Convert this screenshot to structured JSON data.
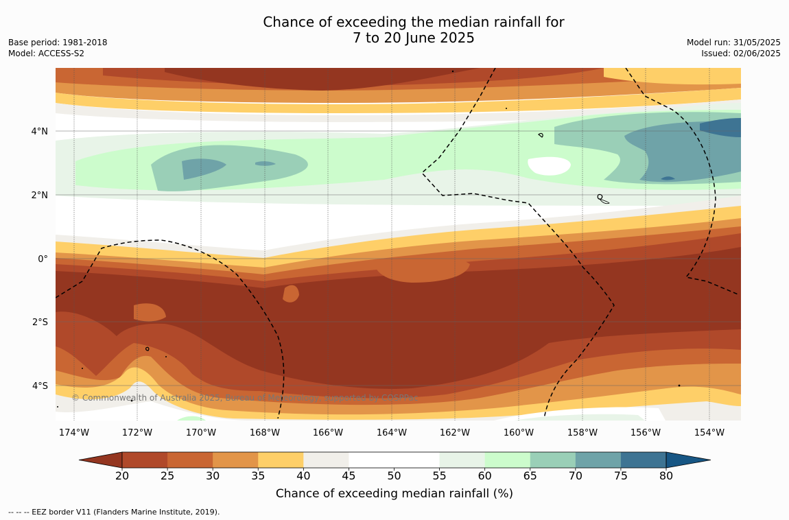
{
  "header": {
    "title_line1": "Chance of exceeding the median rainfall for",
    "title_line2": "7 to 20 June 2025",
    "base_period": "Base period: 1981-2018",
    "model": "Model: ACCESS-S2",
    "model_run": "Model run: 31/05/2025",
    "issued": "Issued: 02/06/2025"
  },
  "map": {
    "lon_labels": [
      "174°W",
      "172°W",
      "170°W",
      "168°W",
      "166°W",
      "164°W",
      "162°W",
      "160°W",
      "158°W",
      "156°W",
      "154°W"
    ],
    "lat_labels": [
      "4°N",
      "2°N",
      "0°",
      "2°S",
      "4°S"
    ],
    "copyright": "© Commonwealth of Australia 2025, Bureau of Meteorology, supported by COSPPac"
  },
  "colorbar": {
    "ticks": [
      "20",
      "25",
      "30",
      "35",
      "40",
      "45",
      "50",
      "55",
      "60",
      "65",
      "70",
      "75",
      "80"
    ],
    "label": "Chance of exceeding median rainfall (%)",
    "colors": [
      "#943620",
      "#b0492a",
      "#c96633",
      "#e29549",
      "#fecf68",
      "#f1efea",
      "#ffffff",
      "#ffffff",
      "#e8f4e8",
      "#ccfccc",
      "#9acfb7",
      "#6fa3a8",
      "#3e7493",
      "#175684"
    ]
  },
  "footnote": "--  --  -- EEZ border V11 (Flanders Marine Institute, 2019)."
}
